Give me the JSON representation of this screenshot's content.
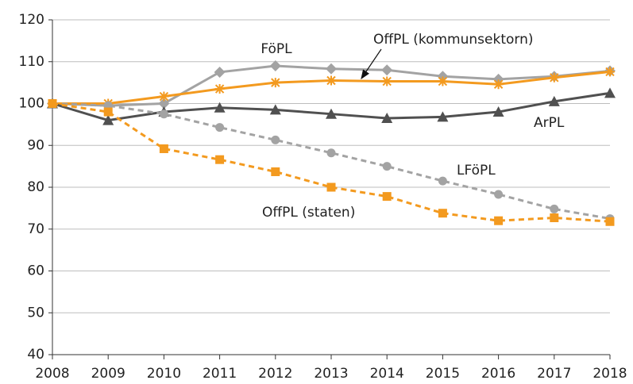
{
  "chart_data": {
    "type": "line",
    "x": [
      2008,
      2009,
      2010,
      2011,
      2012,
      2013,
      2014,
      2015,
      2016,
      2017,
      2018
    ],
    "xlim": [
      2008,
      2018
    ],
    "xticks": [
      2008,
      2009,
      2010,
      2011,
      2012,
      2013,
      2014,
      2015,
      2016,
      2017,
      2018
    ],
    "ylim": [
      40,
      120
    ],
    "yticks": [
      40,
      50,
      60,
      70,
      80,
      90,
      100,
      110,
      120
    ],
    "grid": true,
    "series": [
      {
        "name": "FöPL",
        "color": "#a3a3a3",
        "marker": "diamond",
        "dashed": false,
        "values": [
          100,
          99.5,
          100,
          107.5,
          109,
          108.3,
          108,
          106.5,
          105.8,
          106.5,
          107.8
        ]
      },
      {
        "name": "OffPL (kommunsektorn)",
        "color": "#f39a1f",
        "marker": "asterisk",
        "dashed": false,
        "values": [
          100,
          100,
          101.7,
          103.5,
          105,
          105.5,
          105.3,
          105.3,
          104.6,
          106.2,
          107.6
        ]
      },
      {
        "name": "ArPL",
        "color": "#505050",
        "marker": "triangle",
        "dashed": false,
        "values": [
          100,
          96,
          98,
          99,
          98.5,
          97.5,
          96.5,
          96.8,
          98,
          100.5,
          102.5
        ]
      },
      {
        "name": "LFöPL",
        "color": "#a3a3a3",
        "marker": "circle",
        "dashed": true,
        "values": [
          100,
          99.5,
          97.5,
          94.3,
          91.3,
          88.2,
          85,
          81.5,
          78.3,
          74.8,
          72.5
        ]
      },
      {
        "name": "OffPL (staten)",
        "color": "#f39a1f",
        "marker": "square",
        "dashed": true,
        "values": [
          100,
          98,
          89.2,
          86.6,
          83.7,
          80,
          77.8,
          73.8,
          72,
          72.7,
          71.8
        ]
      }
    ]
  }
}
